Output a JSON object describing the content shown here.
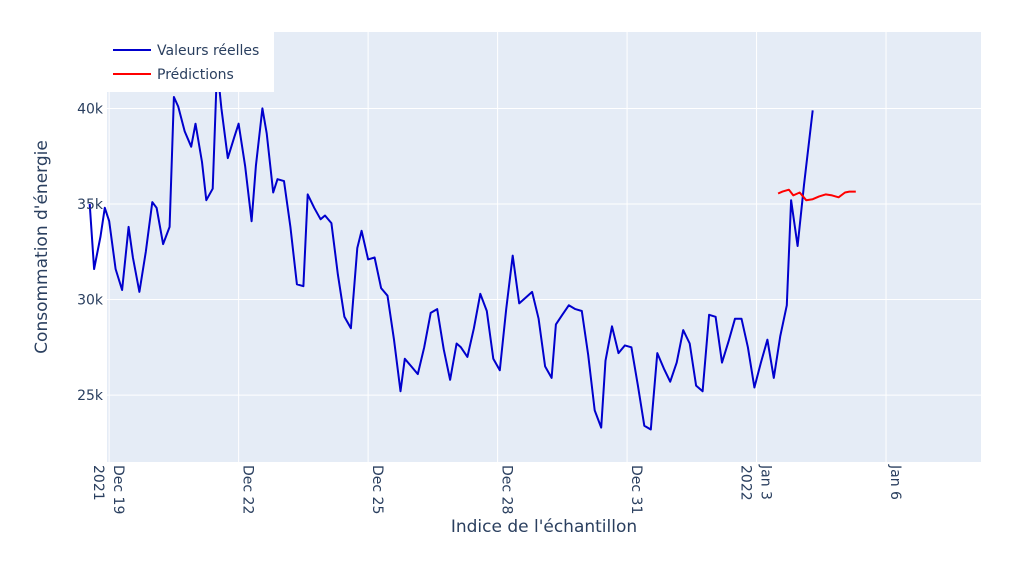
{
  "chart_data": {
    "type": "line",
    "xlabel": "Indice de l'échantillon",
    "ylabel": "Consommation d'énergie",
    "grid": true,
    "legend_position": "top-left",
    "colors": {
      "background": "#e5ecf6",
      "grid": "#ffffff",
      "actual": "#0000cd",
      "pred": "#ff0000"
    },
    "xlim": [
      16.95,
      37.2
    ],
    "ylim": [
      21500,
      44000
    ],
    "x_ticks": [
      {
        "x": 17.0,
        "lines": [
          "Dec 19",
          "2021"
        ]
      },
      {
        "x": 20.0,
        "lines": [
          "Dec 22"
        ]
      },
      {
        "x": 23.0,
        "lines": [
          "Dec 25"
        ]
      },
      {
        "x": 26.0,
        "lines": [
          "Dec 28"
        ]
      },
      {
        "x": 29.0,
        "lines": [
          "Dec 31"
        ]
      },
      {
        "x": 32.0,
        "lines": [
          "Jan 3",
          "2022"
        ]
      },
      {
        "x": 35.0,
        "lines": [
          "Jan 6"
        ]
      }
    ],
    "y_ticks": [
      {
        "y": 25000,
        "label": "25k"
      },
      {
        "y": 30000,
        "label": "30k"
      },
      {
        "y": 35000,
        "label": "35k"
      },
      {
        "y": 40000,
        "label": "40k"
      }
    ],
    "series": [
      {
        "name": "Valeurs réelles",
        "points": [
          [
            16.55,
            35000
          ],
          [
            16.65,
            31600
          ],
          [
            16.8,
            33300
          ],
          [
            16.9,
            34800
          ],
          [
            17.0,
            34100
          ],
          [
            17.15,
            31600
          ],
          [
            17.3,
            30500
          ],
          [
            17.45,
            33800
          ],
          [
            17.55,
            32200
          ],
          [
            17.7,
            30400
          ],
          [
            17.85,
            32500
          ],
          [
            18.0,
            35100
          ],
          [
            18.1,
            34800
          ],
          [
            18.25,
            32900
          ],
          [
            18.4,
            33800
          ],
          [
            18.5,
            40600
          ],
          [
            18.6,
            40100
          ],
          [
            18.75,
            38800
          ],
          [
            18.9,
            38000
          ],
          [
            19.0,
            39200
          ],
          [
            19.15,
            37200
          ],
          [
            19.25,
            35200
          ],
          [
            19.4,
            35800
          ],
          [
            19.5,
            42200
          ],
          [
            19.6,
            40000
          ],
          [
            19.75,
            37400
          ],
          [
            19.9,
            38500
          ],
          [
            20.0,
            39200
          ],
          [
            20.15,
            37000
          ],
          [
            20.3,
            34100
          ],
          [
            20.4,
            37000
          ],
          [
            20.55,
            40000
          ],
          [
            20.65,
            38700
          ],
          [
            20.8,
            35600
          ],
          [
            20.9,
            36300
          ],
          [
            21.05,
            36200
          ],
          [
            21.2,
            33800
          ],
          [
            21.35,
            30800
          ],
          [
            21.5,
            30700
          ],
          [
            21.6,
            35500
          ],
          [
            21.75,
            34800
          ],
          [
            21.9,
            34200
          ],
          [
            22.0,
            34400
          ],
          [
            22.15,
            34000
          ],
          [
            22.3,
            31300
          ],
          [
            22.45,
            29100
          ],
          [
            22.6,
            28500
          ],
          [
            22.75,
            32700
          ],
          [
            22.85,
            33600
          ],
          [
            23.0,
            32100
          ],
          [
            23.15,
            32200
          ],
          [
            23.3,
            30600
          ],
          [
            23.45,
            30200
          ],
          [
            23.6,
            27900
          ],
          [
            23.75,
            25200
          ],
          [
            23.85,
            26900
          ],
          [
            24.0,
            26500
          ],
          [
            24.15,
            26100
          ],
          [
            24.3,
            27500
          ],
          [
            24.45,
            29300
          ],
          [
            24.6,
            29500
          ],
          [
            24.75,
            27400
          ],
          [
            24.9,
            25800
          ],
          [
            25.05,
            27700
          ],
          [
            25.15,
            27500
          ],
          [
            25.3,
            27000
          ],
          [
            25.45,
            28500
          ],
          [
            25.6,
            30300
          ],
          [
            25.75,
            29400
          ],
          [
            25.9,
            26900
          ],
          [
            26.05,
            26300
          ],
          [
            26.2,
            29500
          ],
          [
            26.35,
            32300
          ],
          [
            26.5,
            29800
          ],
          [
            26.65,
            30100
          ],
          [
            26.8,
            30400
          ],
          [
            26.95,
            29000
          ],
          [
            27.1,
            26500
          ],
          [
            27.25,
            25900
          ],
          [
            27.35,
            28700
          ],
          [
            27.5,
            29200
          ],
          [
            27.65,
            29700
          ],
          [
            27.8,
            29500
          ],
          [
            27.95,
            29400
          ],
          [
            28.1,
            27100
          ],
          [
            28.25,
            24200
          ],
          [
            28.4,
            23300
          ],
          [
            28.5,
            26800
          ],
          [
            28.65,
            28600
          ],
          [
            28.8,
            27200
          ],
          [
            28.95,
            27600
          ],
          [
            29.1,
            27500
          ],
          [
            29.25,
            25500
          ],
          [
            29.4,
            23400
          ],
          [
            29.55,
            23200
          ],
          [
            29.7,
            27200
          ],
          [
            29.85,
            26400
          ],
          [
            30.0,
            25700
          ],
          [
            30.15,
            26700
          ],
          [
            30.3,
            28400
          ],
          [
            30.45,
            27700
          ],
          [
            30.6,
            25500
          ],
          [
            30.75,
            25200
          ],
          [
            30.9,
            29200
          ],
          [
            31.05,
            29100
          ],
          [
            31.2,
            26700
          ],
          [
            31.35,
            27800
          ],
          [
            31.5,
            29000
          ],
          [
            31.65,
            29000
          ],
          [
            31.8,
            27500
          ],
          [
            31.95,
            25400
          ],
          [
            32.1,
            26700
          ],
          [
            32.25,
            27900
          ],
          [
            32.4,
            25900
          ],
          [
            32.55,
            28100
          ],
          [
            32.7,
            29700
          ],
          [
            32.8,
            35200
          ],
          [
            32.95,
            32800
          ],
          [
            33.1,
            36000
          ],
          [
            33.3,
            39900
          ]
        ]
      },
      {
        "name": "Prédictions",
        "points": [
          [
            32.5,
            35550
          ],
          [
            32.6,
            35650
          ],
          [
            32.75,
            35750
          ],
          [
            32.85,
            35450
          ],
          [
            33.0,
            35600
          ],
          [
            33.15,
            35200
          ],
          [
            33.3,
            35250
          ],
          [
            33.45,
            35400
          ],
          [
            33.6,
            35500
          ],
          [
            33.75,
            35450
          ],
          [
            33.9,
            35350
          ],
          [
            34.05,
            35600
          ],
          [
            34.15,
            35650
          ],
          [
            34.3,
            35650
          ]
        ]
      }
    ]
  }
}
